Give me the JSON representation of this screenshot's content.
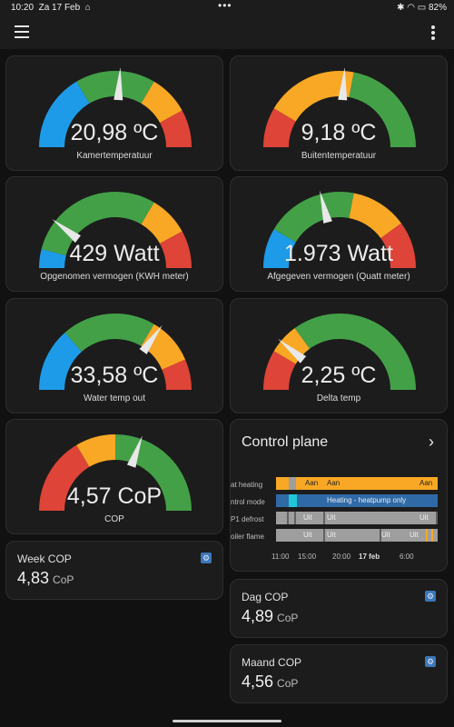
{
  "status_bar": {
    "time": "10:20",
    "date": "Za 17 Feb",
    "battery": "82%"
  },
  "colors": {
    "blue": "#1e9be8",
    "green": "#43a047",
    "orange": "#f9a825",
    "red": "#de4437",
    "needle": "#e8e8e8"
  },
  "gauges": [
    {
      "value": "20,98 ºC",
      "label": "Kamertemperatuur",
      "level": 0.52,
      "segments": [
        {
          "from": 0,
          "to": 0.33,
          "color": "blue"
        },
        {
          "from": 0.33,
          "to": 0.67,
          "color": "green"
        },
        {
          "from": 0.67,
          "to": 0.84,
          "color": "orange"
        },
        {
          "from": 0.84,
          "to": 1,
          "color": "red"
        }
      ]
    },
    {
      "value": "9,18 ºC",
      "label": "Buitentemperatuur",
      "level": 0.52,
      "segments": [
        {
          "from": 0,
          "to": 0.17,
          "color": "red"
        },
        {
          "from": 0.17,
          "to": 0.56,
          "color": "orange"
        },
        {
          "from": 0.56,
          "to": 1,
          "color": "green"
        }
      ]
    },
    {
      "value": "429 Watt",
      "label": "Opgenomen vermogen (KWH meter)",
      "level": 0.21,
      "segments": [
        {
          "from": 0,
          "to": 0.08,
          "color": "blue"
        },
        {
          "from": 0.08,
          "to": 0.67,
          "color": "green"
        },
        {
          "from": 0.67,
          "to": 0.84,
          "color": "orange"
        },
        {
          "from": 0.84,
          "to": 1,
          "color": "red"
        }
      ]
    },
    {
      "value": "1.973 Watt",
      "label": "Afgegeven vermogen (Quatt meter)",
      "level": 0.42,
      "segments": [
        {
          "from": 0,
          "to": 0.17,
          "color": "blue"
        },
        {
          "from": 0.17,
          "to": 0.56,
          "color": "green"
        },
        {
          "from": 0.56,
          "to": 0.8,
          "color": "orange"
        },
        {
          "from": 0.8,
          "to": 1,
          "color": "red"
        }
      ]
    },
    {
      "value": "33,58 ºC",
      "label": "Water temp out",
      "level": 0.7,
      "segments": [
        {
          "from": 0,
          "to": 0.27,
          "color": "blue"
        },
        {
          "from": 0.27,
          "to": 0.67,
          "color": "green"
        },
        {
          "from": 0.67,
          "to": 0.87,
          "color": "orange"
        },
        {
          "from": 0.87,
          "to": 1,
          "color": "red"
        }
      ]
    },
    {
      "value": "2,25 ºC",
      "label": "Delta temp",
      "level": 0.22,
      "segments": [
        {
          "from": 0,
          "to": 0.17,
          "color": "red"
        },
        {
          "from": 0.17,
          "to": 0.3,
          "color": "orange"
        },
        {
          "from": 0.3,
          "to": 1,
          "color": "green"
        }
      ]
    },
    {
      "value": "4,57 CoP",
      "label": "COP",
      "level": 0.61,
      "segments": [
        {
          "from": 0,
          "to": 0.33,
          "color": "red"
        },
        {
          "from": 0.33,
          "to": 0.5,
          "color": "orange"
        },
        {
          "from": 0.5,
          "to": 1,
          "color": "green"
        }
      ]
    }
  ],
  "sensors": {
    "week_cop": {
      "title": "Week COP",
      "value": "4,83",
      "unit": "CoP",
      "icon": "gauge-icon"
    },
    "dag_cop": {
      "title": "Dag COP",
      "value": "4,89",
      "unit": "CoP",
      "icon": "gauge-icon"
    },
    "maand_cop": {
      "title": "Maand COP",
      "value": "4,56",
      "unit": "CoP",
      "icon": "gauge-icon"
    }
  },
  "control_plane": {
    "title": "Control plane",
    "rows": [
      {
        "label": "at heating",
        "texts": [
          "Aan",
          "Aan",
          "Aan"
        ]
      },
      {
        "label": "ntrol mode",
        "texts": [
          "Heating - heatpump only"
        ]
      },
      {
        "label": "P1 defrost",
        "texts": [
          "Uit",
          "Uit",
          "Uit"
        ]
      },
      {
        "label": "oiler flame",
        "texts": [
          "Uit",
          "Uit",
          "Uit",
          "Uit"
        ]
      }
    ],
    "ticks": [
      "11:00",
      "15:00",
      "20:00",
      "17 feb",
      "6:00"
    ]
  }
}
